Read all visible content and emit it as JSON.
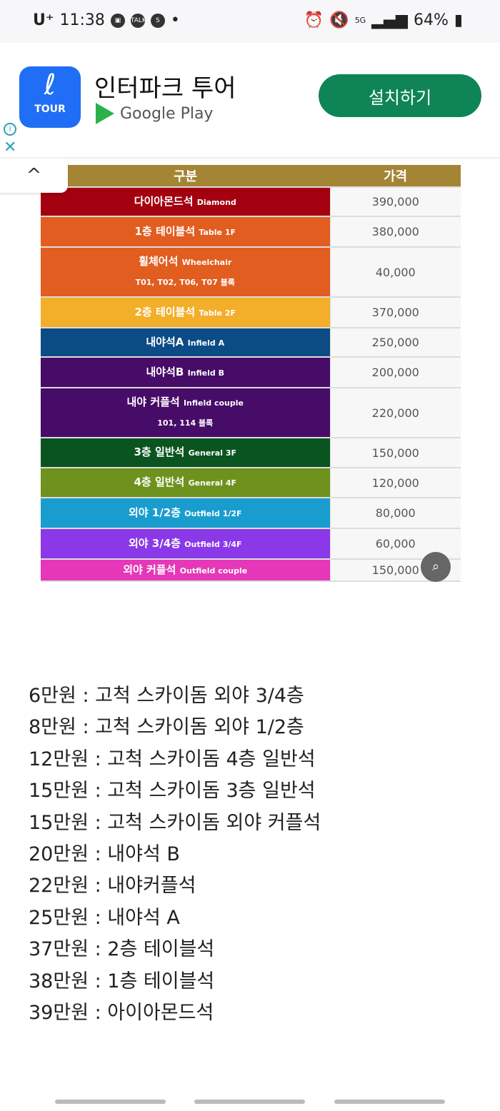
{
  "status_bar": {
    "carrier": "U⁺",
    "time": "11:38",
    "left_icons": [
      "gallery-icon",
      "kakaotalk-icon",
      "s-app-icon",
      "dot-icon"
    ],
    "right_icons": [
      "alarm-icon",
      "mute-icon",
      "5g-icon",
      "signal-icon"
    ],
    "battery": "64%"
  },
  "ad": {
    "app_name": "인터파크 투어",
    "icon_label": "TOUR",
    "store": "Google Play",
    "install_label": "설치하기",
    "info": "i",
    "close": "✕"
  },
  "collapse": "^",
  "table": {
    "headers": [
      "구분",
      "가격"
    ],
    "rows": [
      {
        "ko": "다이아몬드석",
        "en": "Diamond",
        "sub": "",
        "price": "390,000",
        "color": "#a30010"
      },
      {
        "ko": "1층 테이블석",
        "en": "Table 1F",
        "sub": "",
        "price": "380,000",
        "color": "#e25d20"
      },
      {
        "ko": "휠체어석",
        "en": "Wheelchair",
        "sub": "T01, T02, T06, T07 블록",
        "price": "40,000",
        "color": "#e25d20"
      },
      {
        "ko": "2층 테이블석",
        "en": "Table 2F",
        "sub": "",
        "price": "370,000",
        "color": "#f3ae2a"
      },
      {
        "ko": "내야석A",
        "en": "Infield A",
        "sub": "",
        "price": "250,000",
        "color": "#0b4c85"
      },
      {
        "ko": "내야석B",
        "en": "Infield B",
        "sub": "",
        "price": "200,000",
        "color": "#470b68"
      },
      {
        "ko": "내야 커플석",
        "en": "Infield couple",
        "sub": "101, 114 블록",
        "price": "220,000",
        "color": "#470b68"
      },
      {
        "ko": "3층 일반석",
        "en": "General 3F",
        "sub": "",
        "price": "150,000",
        "color": "#0a5420"
      },
      {
        "ko": "4층 일반석",
        "en": "General 4F",
        "sub": "",
        "price": "120,000",
        "color": "#6e921d"
      },
      {
        "ko": "외야 1/2층",
        "en": "Outfield 1/2F",
        "sub": "",
        "price": "80,000",
        "color": "#199dcf"
      },
      {
        "ko": "외야 3/4층",
        "en": "Outfield 3/4F",
        "sub": "",
        "price": "60,000",
        "color": "#8a38e8"
      },
      {
        "ko": "외야 커플석",
        "en": "Outfield couple",
        "sub": "",
        "price": "150,000",
        "color": "#e537b8"
      }
    ]
  },
  "price_list": [
    "6만원 : 고척 스카이돔 외야 3/4층",
    "8만원 : 고척 스카이돔 외야 1/2층",
    "12만원 : 고척 스카이돔 4층 일반석",
    "15만원 : 고척 스카이돔 3층 일반석",
    "15만원 : 고척 스카이돔 외야 커플석",
    "20만원 : 내야석 B",
    "22만원 : 내야커플석",
    "25만원 : 내야석 A",
    "37만원 : 2층 테이블석",
    "38만원 : 1층 테이블석",
    "39만원 : 아이아몬드석"
  ]
}
